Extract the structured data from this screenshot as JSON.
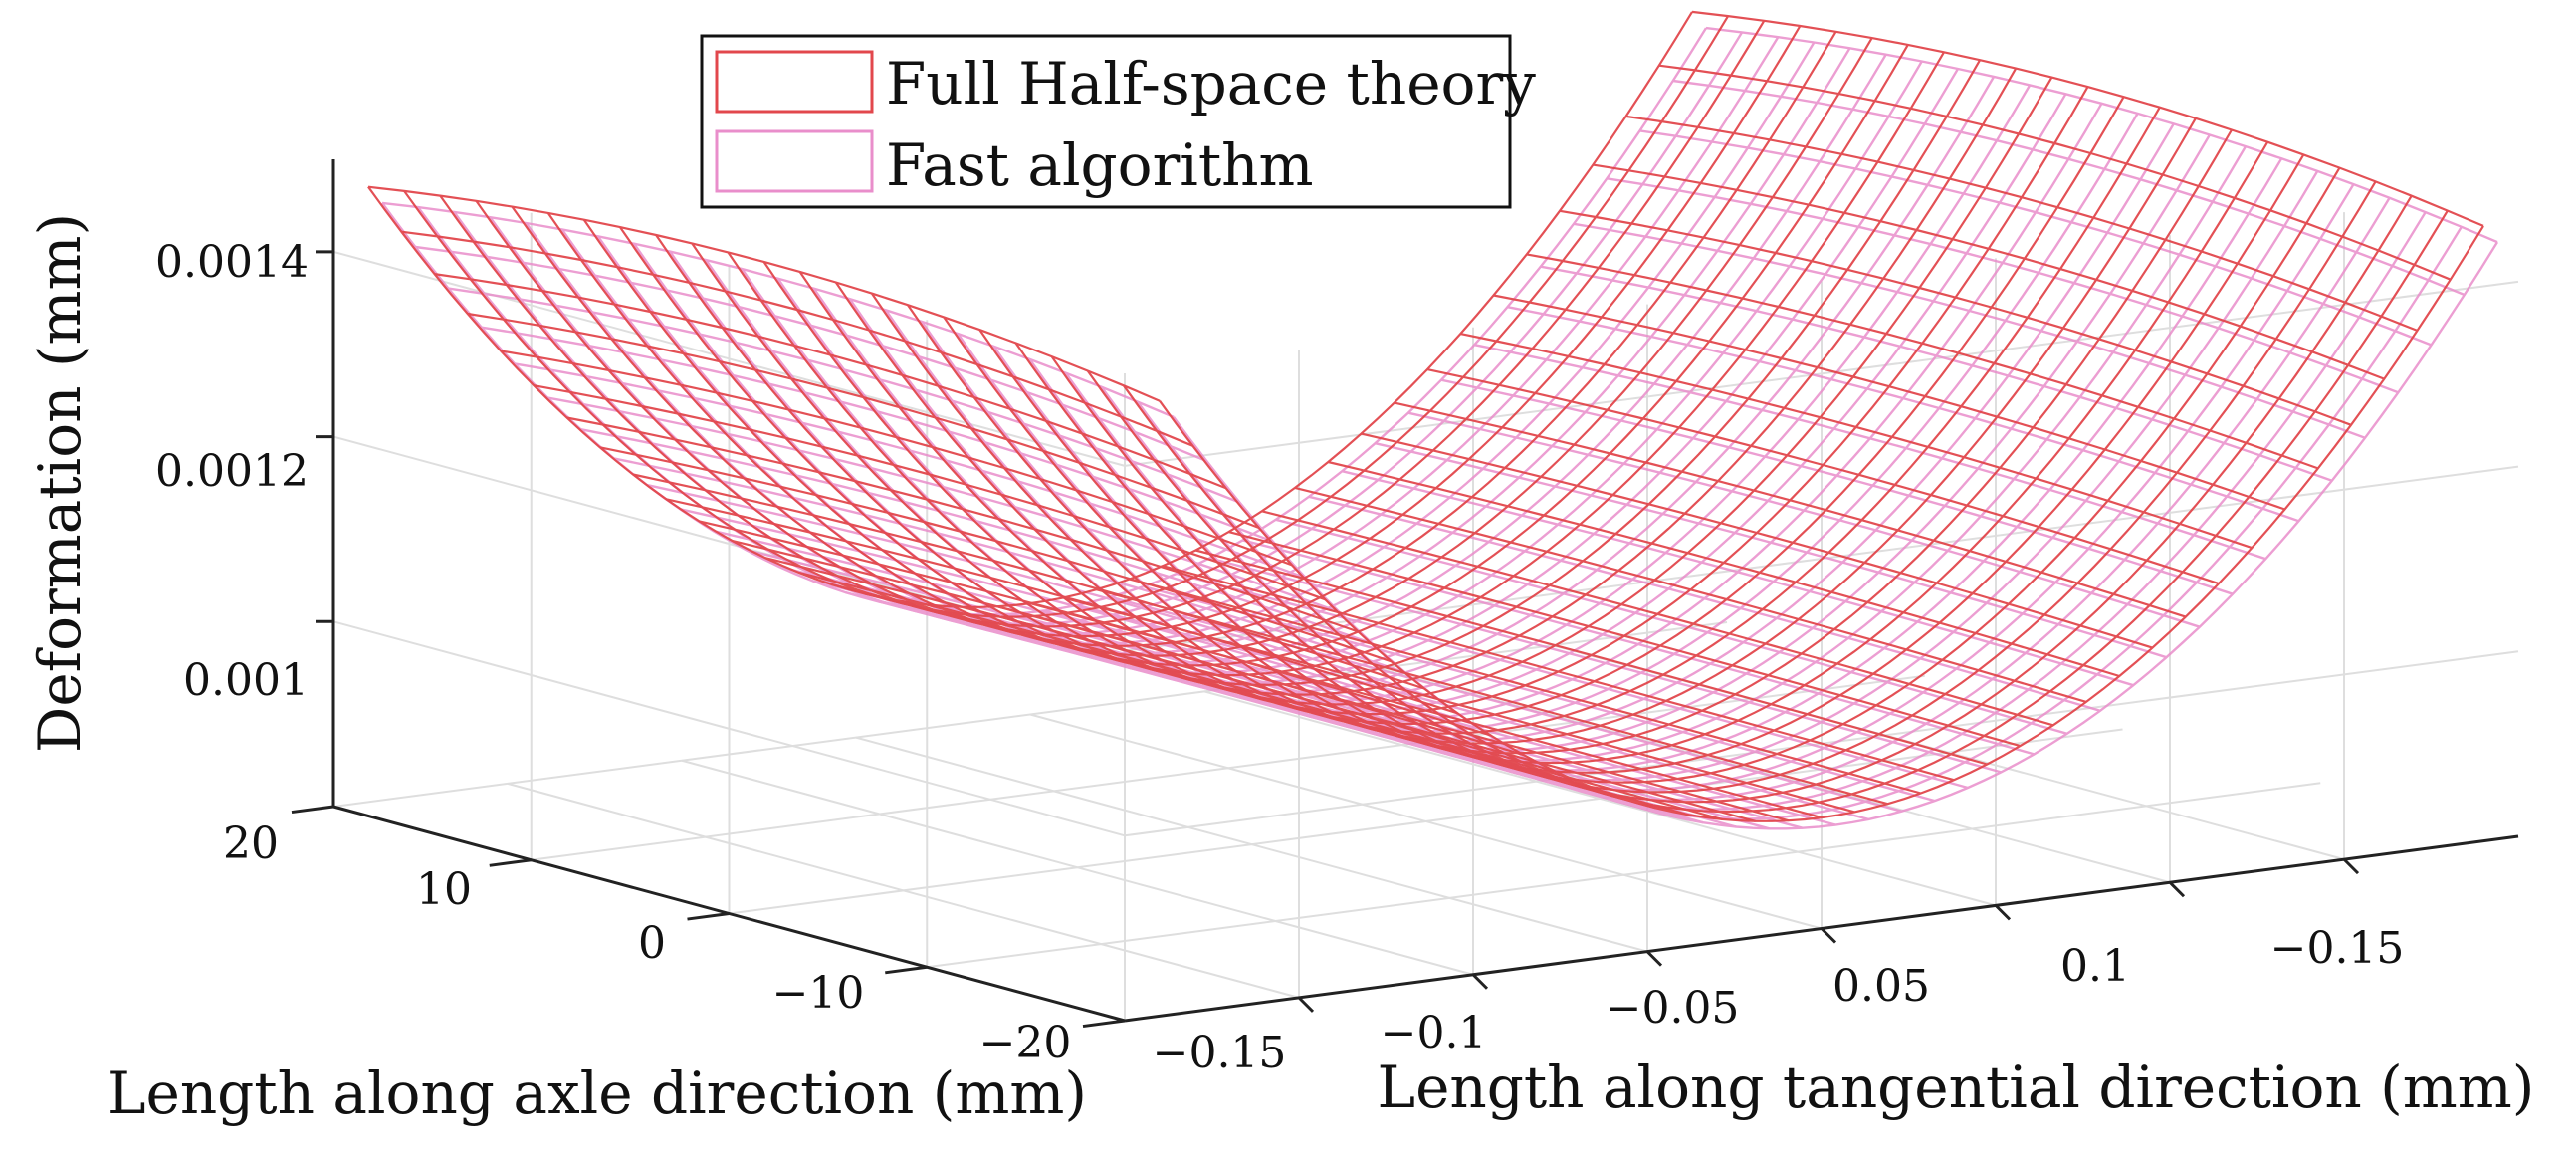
{
  "chart_data": {
    "type": "surface",
    "projection": "3d-mesh",
    "series": [
      {
        "name": "Full Half-space theory",
        "color": "#e2474c",
        "z_min": 0.00092,
        "z_edge": 0.0015
      },
      {
        "name": "Fast algorithm",
        "color": "#e98ecb",
        "z_min": 0.00091,
        "z_edge": 0.00148
      }
    ],
    "xlabel": "Length along tangential direction (mm)",
    "ylabel": "Length along axle direction (mm)",
    "zlabel": "Deformation (mm)",
    "x_ticks": [
      "−0.15",
      "−0.1",
      "−0.05",
      "0.05",
      "0.1",
      "−0.15"
    ],
    "y_ticks": [
      "20",
      "10",
      "0",
      "−10",
      "−20"
    ],
    "z_ticks": [
      "0.0014",
      "0.0012",
      "0.001"
    ],
    "xlim": [
      -0.2,
      0.2
    ],
    "ylim": [
      -20,
      20
    ],
    "zlim": [
      0.0008,
      0.0015
    ],
    "grid": true,
    "legend_position": "top-left"
  }
}
